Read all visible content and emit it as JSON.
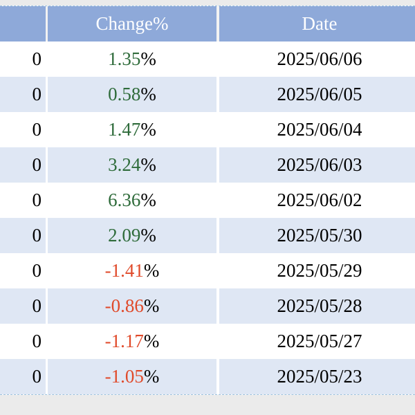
{
  "table": {
    "headers": {
      "prev": "",
      "change": "Change%",
      "date": "Date"
    },
    "rows": [
      {
        "prev": "0",
        "change": "1.35",
        "sign": "pos",
        "pct": "%",
        "date": "2025/06/06"
      },
      {
        "prev": "0",
        "change": "0.58",
        "sign": "pos",
        "pct": "%",
        "date": "2025/06/05"
      },
      {
        "prev": "0",
        "change": "1.47",
        "sign": "pos",
        "pct": "%",
        "date": "2025/06/04"
      },
      {
        "prev": "0",
        "change": "3.24",
        "sign": "pos",
        "pct": "%",
        "date": "2025/06/03"
      },
      {
        "prev": "0",
        "change": "6.36",
        "sign": "pos",
        "pct": "%",
        "date": "2025/06/02"
      },
      {
        "prev": "0",
        "change": "2.09",
        "sign": "pos",
        "pct": "%",
        "date": "2025/05/30"
      },
      {
        "prev": "0",
        "change": "-1.41",
        "sign": "neg",
        "pct": "%",
        "date": "2025/05/29"
      },
      {
        "prev": "0",
        "change": "-0.86",
        "sign": "neg",
        "pct": "%",
        "date": "2025/05/28"
      },
      {
        "prev": "0",
        "change": "-1.17",
        "sign": "neg",
        "pct": "%",
        "date": "2025/05/27"
      },
      {
        "prev": "0",
        "change": "-1.05",
        "sign": "neg",
        "pct": "%",
        "date": "2025/05/23"
      }
    ]
  },
  "colors": {
    "header_bg": "#8ea9d9",
    "row_alt_bg": "#dfe7f4",
    "positive": "#2e6b3a",
    "negative": "#e04a2a"
  }
}
